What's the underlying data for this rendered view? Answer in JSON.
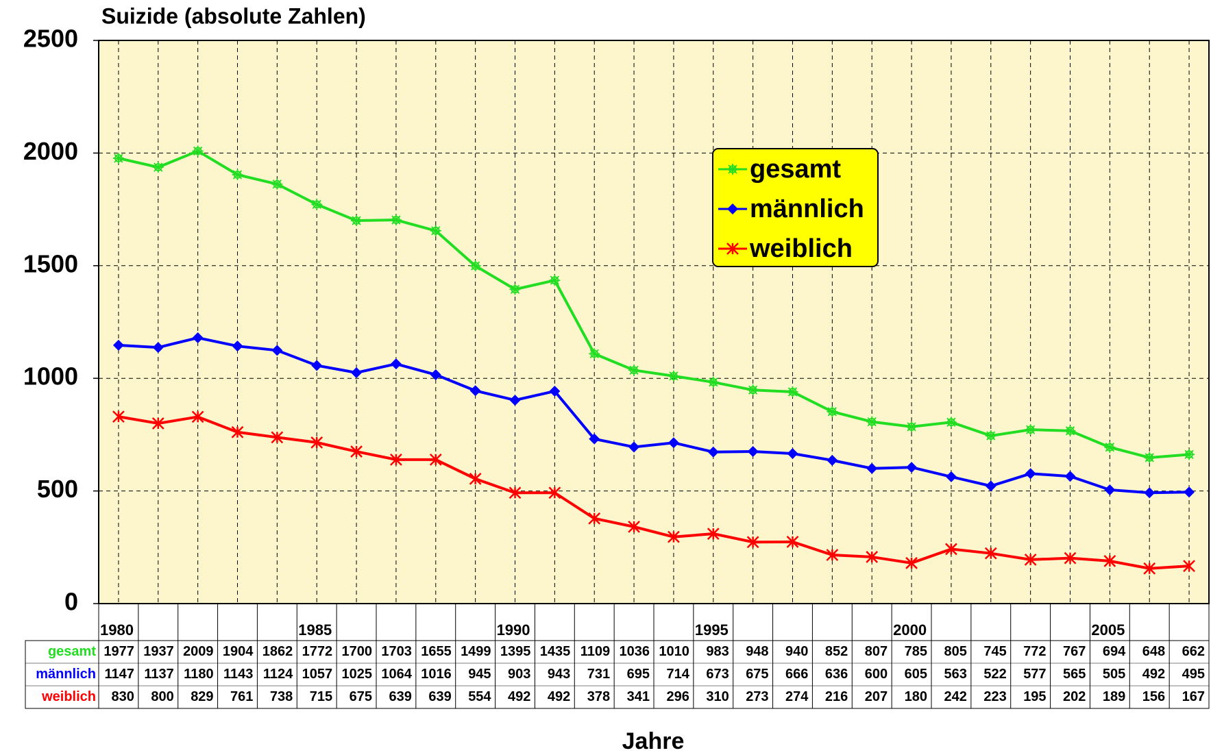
{
  "chart_data": {
    "type": "line",
    "title": "Suizide (absolute Zahlen)",
    "x_label": "Jahre",
    "categories": [
      "1980",
      null,
      null,
      null,
      null,
      "1985",
      null,
      null,
      null,
      null,
      "1990",
      null,
      null,
      null,
      null,
      "1995",
      null,
      null,
      null,
      null,
      "2000",
      null,
      null,
      null,
      null,
      "2005",
      null,
      null
    ],
    "series": [
      {
        "name": "gesamt",
        "color": "#22dd22",
        "marker": "star",
        "values": [
          1977,
          1937,
          2009,
          1904,
          1862,
          1772,
          1700,
          1703,
          1655,
          1499,
          1395,
          1435,
          1109,
          1036,
          1010,
          983,
          948,
          940,
          852,
          807,
          785,
          805,
          745,
          772,
          767,
          694,
          648,
          662
        ]
      },
      {
        "name": "männlich",
        "color": "#0000ff",
        "marker": "diamond",
        "values": [
          1147,
          1137,
          1180,
          1143,
          1124,
          1057,
          1025,
          1064,
          1016,
          945,
          903,
          943,
          731,
          695,
          714,
          673,
          675,
          666,
          636,
          600,
          605,
          563,
          522,
          577,
          565,
          505,
          492,
          495
        ]
      },
      {
        "name": "weiblich",
        "color": "#ff0000",
        "marker": "asterisk",
        "values": [
          830,
          800,
          829,
          761,
          738,
          715,
          675,
          639,
          639,
          554,
          492,
          492,
          378,
          341,
          296,
          310,
          273,
          274,
          216,
          207,
          180,
          242,
          223,
          195,
          202,
          189,
          156,
          167
        ]
      }
    ],
    "ylim": [
      0,
      2500
    ],
    "yticks": [
      0,
      500,
      1000,
      1500,
      2000,
      2500
    ],
    "grid": true,
    "data_table": true
  }
}
